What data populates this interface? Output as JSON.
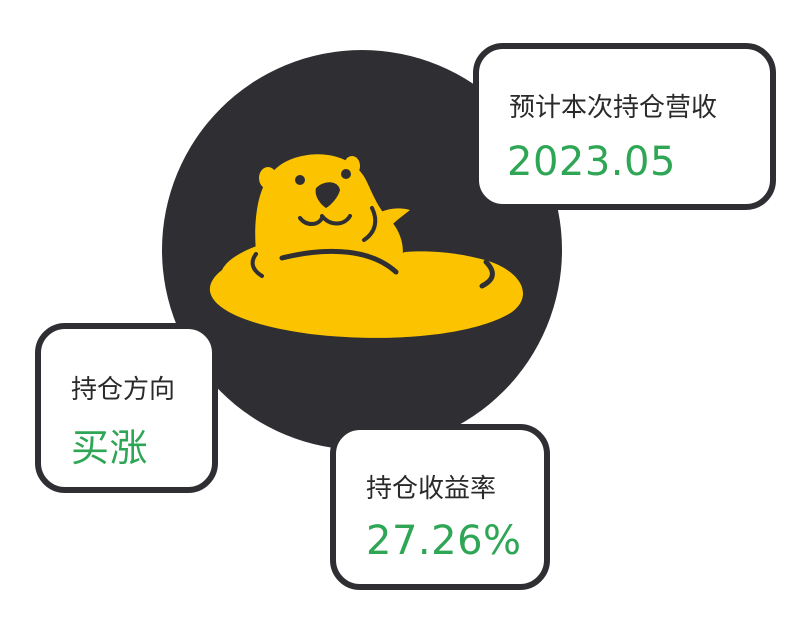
{
  "colors": {
    "circle": "#2f2f33",
    "brand_yellow": "#fcc400",
    "value_green": "#2fa655",
    "card_border": "#2f2f33"
  },
  "logo": {
    "icon": "otter-in-pool-icon"
  },
  "cards": {
    "revenue": {
      "label": "预计本次持仓营收",
      "value": "2023.05"
    },
    "direction": {
      "label": "持仓方向",
      "value": "买涨"
    },
    "yield": {
      "label": "持仓收益率",
      "value": "27.26%"
    }
  }
}
